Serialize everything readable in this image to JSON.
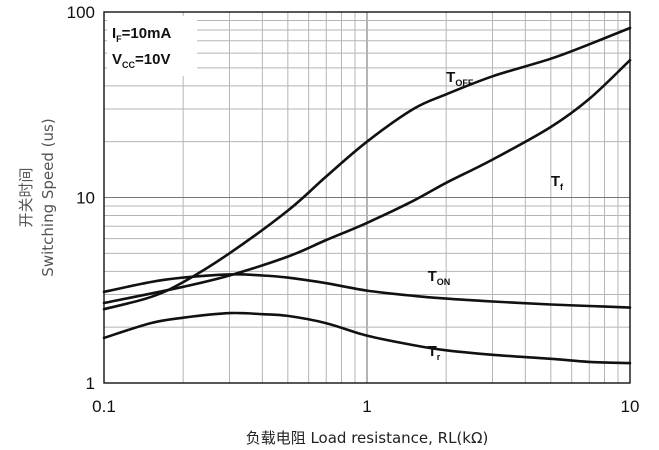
{
  "chart_data": {
    "type": "line",
    "title": "",
    "xlabel": "负载电阻 Load resistance, RL(kΩ)",
    "ylabel_cn": "开关时间",
    "ylabel": "Switching Speed (us)",
    "xscale": "log",
    "yscale": "log",
    "xlim": [
      0.1,
      10
    ],
    "ylim": [
      1,
      100
    ],
    "grid": true,
    "x_ticks": [
      "0.1",
      "1",
      "10"
    ],
    "y_ticks": [
      "1",
      "10",
      "100"
    ],
    "conditions": [
      {
        "name": "I",
        "sub": "F",
        "value": "=10mA"
      },
      {
        "name": "V",
        "sub": "CC",
        "value": "=10V"
      }
    ],
    "series": [
      {
        "name": "T",
        "sub": "OFF",
        "label_pos": [
          2.0,
          42.0
        ],
        "x": [
          0.1,
          0.15,
          0.2,
          0.3,
          0.5,
          0.7,
          1,
          1.5,
          2,
          3,
          5,
          7,
          10
        ],
        "y": [
          2.5,
          2.9,
          3.5,
          5.0,
          8.5,
          13,
          20,
          30,
          36,
          45,
          56,
          67,
          82
        ]
      },
      {
        "name": "T",
        "sub": "f",
        "label_pos": [
          5.0,
          11.5
        ],
        "x": [
          0.1,
          0.2,
          0.3,
          0.5,
          0.7,
          1,
          1.5,
          2,
          3,
          5,
          7,
          10
        ],
        "y": [
          2.7,
          3.3,
          3.8,
          4.8,
          5.9,
          7.3,
          9.6,
          12,
          16,
          24,
          34,
          55
        ]
      },
      {
        "name": "T",
        "sub": "ON",
        "label_pos": [
          1.7,
          3.55
        ],
        "x": [
          0.1,
          0.15,
          0.2,
          0.3,
          0.4,
          0.5,
          0.7,
          1,
          1.5,
          2,
          3,
          5,
          7,
          10
        ],
        "y": [
          3.1,
          3.5,
          3.7,
          3.85,
          3.8,
          3.7,
          3.45,
          3.15,
          2.95,
          2.85,
          2.75,
          2.65,
          2.6,
          2.55
        ]
      },
      {
        "name": "T",
        "sub": "r",
        "label_pos": [
          1.7,
          1.4
        ],
        "x": [
          0.1,
          0.15,
          0.2,
          0.3,
          0.4,
          0.5,
          0.7,
          1,
          1.5,
          2,
          3,
          5,
          7,
          10
        ],
        "y": [
          1.75,
          2.1,
          2.25,
          2.38,
          2.35,
          2.3,
          2.1,
          1.8,
          1.6,
          1.5,
          1.42,
          1.35,
          1.3,
          1.28
        ]
      }
    ]
  }
}
